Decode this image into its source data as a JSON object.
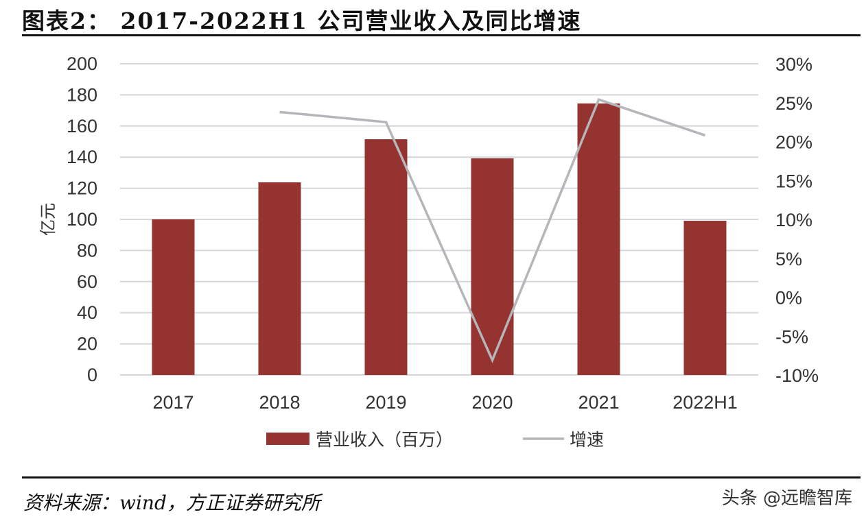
{
  "title": "图表2： 2017-2022H1 公司营业收入及同比增速",
  "source": "资料来源：wind，方正证券研究所",
  "watermark": "头条 @远瞻智库",
  "chart_data": {
    "type": "bar+line",
    "title": "图表2： 2017-2022H1 公司营业收入及同比增速",
    "categories": [
      "2017",
      "2018",
      "2019",
      "2020",
      "2021",
      "2022H1"
    ],
    "ylabel": "亿元",
    "ylim": [
      0,
      200
    ],
    "yticks": [
      0,
      20,
      40,
      60,
      80,
      100,
      120,
      140,
      160,
      180,
      200
    ],
    "y2lim": [
      -10,
      30
    ],
    "y2ticks": [
      "-10%",
      "-5%",
      "0%",
      "5%",
      "10%",
      "15%",
      "20%",
      "25%",
      "30%"
    ],
    "grid": true,
    "legend": "bottom",
    "series": [
      {
        "name": "营业收入（百万）",
        "type": "bar",
        "color": "#943330",
        "values": [
          100,
          123.8,
          151.5,
          139.2,
          174.5,
          99.1
        ]
      },
      {
        "name": "增速",
        "type": "line",
        "axis": "right",
        "color": "#b4b6ba",
        "values": [
          null,
          23.8,
          22.5,
          -8.1,
          25.4,
          20.8
        ]
      }
    ]
  }
}
